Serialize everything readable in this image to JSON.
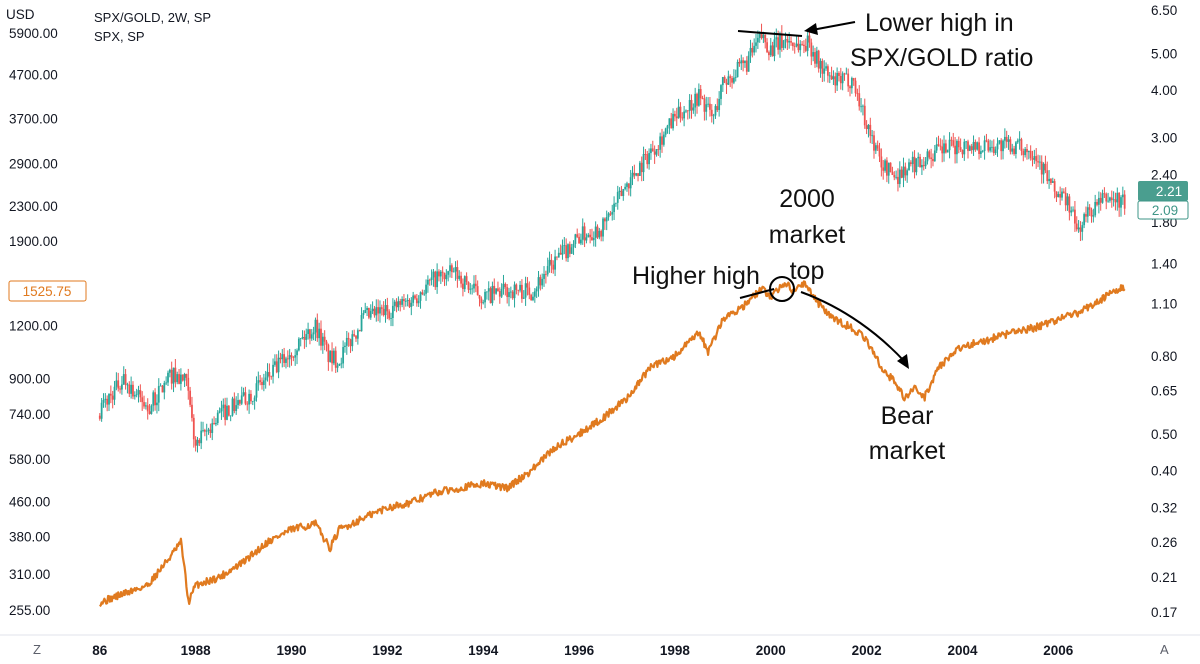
{
  "chart_data": {
    "type": "line",
    "title": "SPX/GOLD, 2W, SP",
    "subtitle": "SPX, SP",
    "left_axis_unit": "USD",
    "x_ticks": [
      "86",
      "1988",
      "1990",
      "1992",
      "1994",
      "1996",
      "1998",
      "2000",
      "2002",
      "2004",
      "2006"
    ],
    "left_ticks": [
      "5900.00",
      "4700.00",
      "3700.00",
      "2900.00",
      "2300.00",
      "1900.00",
      "1200.00",
      "900.00",
      "740.00",
      "580.00",
      "460.00",
      "380.00",
      "310.00",
      "255.00"
    ],
    "right_ticks": [
      "6.50",
      "5.00",
      "4.00",
      "3.00",
      "2.40",
      "1.80",
      "1.40",
      "1.10",
      "0.80",
      "0.65",
      "0.50",
      "0.40",
      "0.32",
      "0.26",
      "0.21",
      "0.17"
    ],
    "left_price_label": "1525.75",
    "right_price_labels": [
      "2.21",
      "2.09"
    ],
    "xlim": [
      1985.9,
      2007.6
    ],
    "left_ylim_log": [
      235,
      6500
    ],
    "right_ylim_log": [
      0.16,
      6.5
    ],
    "series": [
      {
        "name": "SPX/GOLD",
        "axis": "left",
        "style": "candlestick",
        "color_up": "#26a69a",
        "color_down": "#ef5350",
        "x": [
          1986.0,
          1986.5,
          1987.0,
          1987.5,
          1987.8,
          1988.0,
          1988.5,
          1989.0,
          1989.5,
          1990.0,
          1990.5,
          1990.8,
          1991.0,
          1991.5,
          1992.0,
          1992.5,
          1993.0,
          1993.4,
          1993.8,
          1994.0,
          1994.5,
          1995.0,
          1995.5,
          1996.0,
          1996.5,
          1997.0,
          1997.5,
          1998.0,
          1998.5,
          1998.8,
          1999.0,
          1999.5,
          1999.8,
          2000.0,
          2000.3,
          2000.6,
          2000.8,
          2001.0,
          2001.3,
          2001.7,
          2002.0,
          2002.3,
          2002.6,
          2003.0,
          2003.5,
          2004.0,
          2004.5,
          2005.0,
          2005.5,
          2005.9,
          2006.2,
          2006.4,
          2006.6,
          2007.0,
          2007.4
        ],
        "values": [
          760,
          900,
          760,
          920,
          880,
          620,
          740,
          800,
          900,
          1050,
          1200,
          1000,
          1000,
          1250,
          1300,
          1380,
          1550,
          1600,
          1450,
          1400,
          1450,
          1450,
          1700,
          1950,
          2050,
          2600,
          3100,
          3700,
          4200,
          3700,
          4500,
          5000,
          5800,
          5400,
          5700,
          5500,
          5600,
          5000,
          4500,
          4600,
          3600,
          2900,
          2700,
          2900,
          3100,
          3200,
          3200,
          3200,
          3100,
          2500,
          2350,
          2000,
          2200,
          2400,
          2350
        ]
      },
      {
        "name": "SPX",
        "axis": "right",
        "style": "line",
        "color": "#e07a1f",
        "x": [
          1986.0,
          1986.5,
          1987.0,
          1987.5,
          1987.7,
          1987.85,
          1988.0,
          1988.5,
          1989.0,
          1989.5,
          1990.0,
          1990.5,
          1990.8,
          1991.0,
          1991.5,
          1992.0,
          1992.5,
          1993.0,
          1993.5,
          1994.0,
          1994.5,
          1995.0,
          1995.5,
          1996.0,
          1996.5,
          1997.0,
          1997.5,
          1998.0,
          1998.5,
          1998.7,
          1999.0,
          1999.5,
          1999.8,
          2000.0,
          2000.3,
          2000.5,
          2000.7,
          2001.0,
          2001.3,
          2001.7,
          2002.0,
          2002.3,
          2002.6,
          2002.8,
          2003.0,
          2003.2,
          2003.5,
          2004.0,
          2004.5,
          2005.0,
          2005.5,
          2006.0,
          2006.5,
          2007.0,
          2007.4
        ],
        "values": [
          0.18,
          0.19,
          0.2,
          0.24,
          0.26,
          0.18,
          0.2,
          0.21,
          0.23,
          0.26,
          0.28,
          0.29,
          0.25,
          0.28,
          0.3,
          0.32,
          0.33,
          0.35,
          0.36,
          0.37,
          0.36,
          0.4,
          0.46,
          0.5,
          0.55,
          0.62,
          0.75,
          0.8,
          0.92,
          0.82,
          1.0,
          1.1,
          1.2,
          1.15,
          1.25,
          1.18,
          1.25,
          1.1,
          1.0,
          0.95,
          0.88,
          0.75,
          0.68,
          0.62,
          0.66,
          0.62,
          0.75,
          0.85,
          0.88,
          0.92,
          0.95,
          1.0,
          1.05,
          1.15,
          1.22
        ]
      }
    ],
    "annotations": [
      {
        "text_lines": [
          "Lower high in",
          "SPX/GOLD ratio"
        ]
      },
      {
        "text_lines": [
          "2000",
          "market",
          "top"
        ]
      },
      {
        "text_lines": [
          "Higher high"
        ]
      },
      {
        "text_lines": [
          "Bear",
          "market"
        ]
      }
    ]
  },
  "corner": {
    "left": "Z",
    "right": "A"
  },
  "colors": {
    "up": "#26a69a",
    "down": "#ef5350",
    "spx_line": "#e07a1f",
    "badge_fill": "#4a9e8f",
    "badge_outline": "#3e9687",
    "text": "#131722",
    "axis_line": "#e0e3eb"
  }
}
